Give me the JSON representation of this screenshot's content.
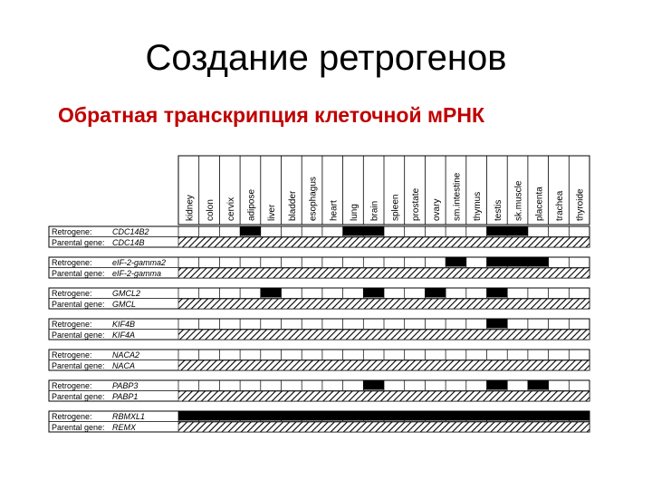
{
  "slide": {
    "title": "Создание ретрогенов",
    "subtitle": "Обратная транскрипция клеточной мРНК"
  },
  "figure": {
    "tissues": [
      "kidney",
      "colon",
      "cervix",
      "adipose",
      "liver",
      "bladder",
      "esophagus",
      "heart",
      "lung",
      "brain",
      "spleen",
      "prostate",
      "ovary",
      "sm.intestine",
      "thymus",
      "testis",
      "sk.muscle",
      "placenta",
      "trachea",
      "thyroide"
    ],
    "row_labels": {
      "retrogene": "Retrogene:",
      "parental": "Parental gene:"
    },
    "pairs": [
      {
        "retrogene": "CDC14B2",
        "parental": "CDC14B",
        "retro_expressed": [
          "adipose",
          "lung",
          "brain",
          "testis",
          "sk.muscle"
        ]
      },
      {
        "retrogene": "eIF-2-gamma2",
        "parental": "eIF-2-gamma",
        "retro_expressed": [
          "sm.intestine",
          "testis",
          "sk.muscle",
          "placenta"
        ]
      },
      {
        "retrogene": "GMCL2",
        "parental": "GMCL",
        "retro_expressed": [
          "liver",
          "brain",
          "ovary",
          "testis"
        ]
      },
      {
        "retrogene": "KIF4B",
        "parental": "KIF4A",
        "retro_expressed": [
          "testis"
        ]
      },
      {
        "retrogene": "NACA2",
        "parental": "NACA",
        "retro_expressed": []
      },
      {
        "retrogene": "PABP3",
        "parental": "PABP1",
        "retro_expressed": [
          "brain",
          "testis",
          "placenta"
        ]
      },
      {
        "retrogene": "RBMXL1",
        "parental": "REMX",
        "retro_expressed": [
          "kidney",
          "colon",
          "cervix",
          "adipose",
          "liver",
          "bladder",
          "esophagus",
          "heart",
          "lung",
          "brain",
          "spleen",
          "prostate",
          "ovary",
          "sm.intestine",
          "thymus",
          "testis",
          "sk.muscle",
          "placenta",
          "trachea",
          "thyroide"
        ]
      }
    ],
    "colors": {
      "expressed": "#000000",
      "line": "#000000",
      "hatch": "#000000"
    }
  }
}
